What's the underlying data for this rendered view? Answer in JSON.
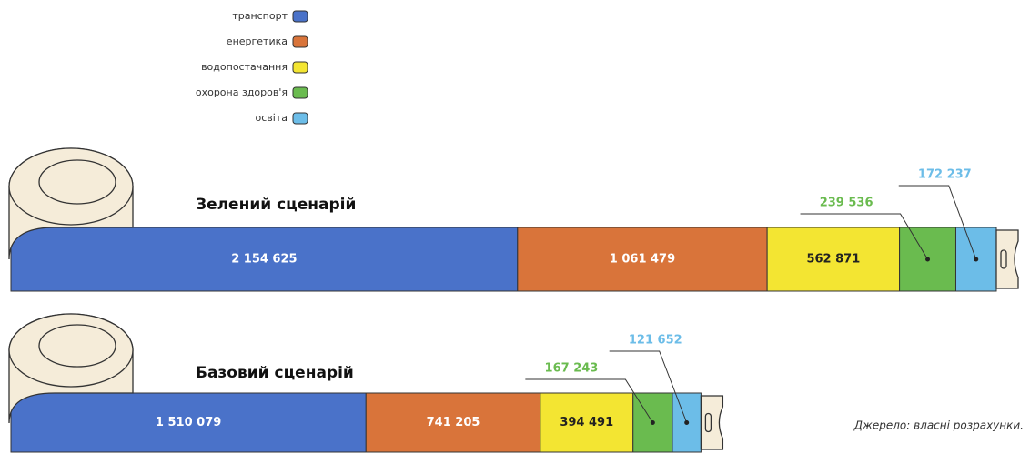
{
  "chart_data": {
    "type": "bar",
    "orientation": "horizontal",
    "stacked": true,
    "categories": [
      "Зелений сценарій",
      "Базовий сценарій"
    ],
    "series": [
      {
        "name": "транспорт",
        "color": "#4a72c9",
        "values": [
          2154625,
          1510079
        ],
        "value_labels": [
          "2 154 625",
          "1 510 079"
        ]
      },
      {
        "name": "енергетика",
        "color": "#d9743a",
        "values": [
          1061479,
          741205
        ],
        "value_labels": [
          "1 061 479",
          "741 205"
        ]
      },
      {
        "name": "водопостачання",
        "color": "#f3e532",
        "values": [
          562871,
          394491
        ],
        "value_labels": [
          "562 871",
          "394 491"
        ]
      },
      {
        "name": "охорона здоров'я",
        "color": "#6abb4f",
        "values": [
          239536,
          167243
        ],
        "value_labels": [
          "239 536",
          "167 243"
        ]
      },
      {
        "name": "освіта",
        "color": "#6cbde8",
        "values": [
          172237,
          121652
        ],
        "value_labels": [
          "172 237",
          "121 652"
        ]
      }
    ],
    "source": "Джерело: власні розрахунки."
  }
}
